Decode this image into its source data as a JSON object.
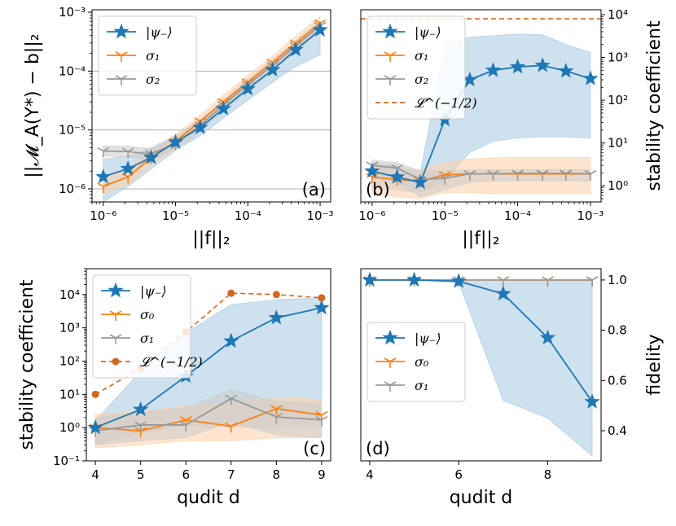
{
  "colors": {
    "psi": "#1f77b4",
    "sigma_a": "#ff7f0e",
    "sigma_b": "#999999",
    "bound": "#d2691e",
    "grid": "#b0b0b0",
    "band_psi": "#a6c8e0",
    "band_sigma_a": "#ffd0a8",
    "band_sigma_b": "#cccccc"
  },
  "chart_data": [
    {
      "id": "a",
      "type": "line",
      "panel_label": "(a)",
      "xscale": "log",
      "yscale": "log",
      "xlim": [
        7e-07,
        0.0014
      ],
      "ylim": [
        6e-07,
        0.0011
      ],
      "xlabel": "||f||₂",
      "ylabel": "||𝓜_A(Y*) − b||₂",
      "xticks": [
        {
          "v": 1e-06,
          "label": "10⁻⁶"
        },
        {
          "v": 1e-05,
          "label": "10⁻⁵"
        },
        {
          "v": 0.0001,
          "label": "10⁻⁴"
        },
        {
          "v": 0.001,
          "label": "10⁻³"
        }
      ],
      "yticks": [
        {
          "v": 1e-06,
          "label": "10⁻⁶"
        },
        {
          "v": 1e-05,
          "label": "10⁻⁵"
        },
        {
          "v": 0.0001,
          "label": "10⁻⁴"
        },
        {
          "v": 0.001,
          "label": "10⁻³"
        }
      ],
      "grid_y": [
        1e-06,
        1e-05,
        0.0001
      ],
      "legend_position": "top-left",
      "x": [
        1e-06,
        2.2e-06,
        4.6e-06,
        1e-05,
        2.2e-05,
        4.6e-05,
        0.0001,
        0.00022,
        0.00046,
        0.001
      ],
      "series": [
        {
          "name": "|ψ₋⟩",
          "key": "psi",
          "marker": "star",
          "values": [
            1.6e-06,
            2.2e-06,
            3.4e-06,
            6.2e-06,
            1.1e-05,
            2.3e-05,
            5e-05,
            0.000105,
            0.00023,
            0.0005
          ],
          "lower": [
            6e-07,
            1.1e-06,
            2.2e-06,
            4.5e-06,
            8e-06,
            1.6e-05,
            3.2e-05,
            6.5e-05,
            0.00012,
            0.00019
          ],
          "upper": [
            3.2e-06,
            3.6e-06,
            5e-06,
            8e-06,
            1.5e-05,
            3e-05,
            6.5e-05,
            0.00014,
            0.0003,
            0.00062
          ]
        },
        {
          "name": "σ₁",
          "key": "sigma_a",
          "marker": "tri",
          "values": [
            1.1e-06,
            1.6e-06,
            3.4e-06,
            6.4e-06,
            1.4e-05,
            3e-05,
            6.5e-05,
            0.00014,
            0.0003,
            0.00065
          ],
          "lower": [
            8e-07,
            1.2e-06,
            2.6e-06,
            5e-06,
            1.1e-05,
            2.3e-05,
            5e-05,
            0.00011,
            0.00023,
            0.0005
          ],
          "upper": [
            1.6e-06,
            2.2e-06,
            4.4e-06,
            8.4e-06,
            1.8e-05,
            3.9e-05,
            8.5e-05,
            0.00018,
            0.00039,
            0.00085
          ]
        },
        {
          "name": "σ₂",
          "key": "sigma_b",
          "marker": "tri",
          "values": [
            4.4e-06,
            4.3e-06,
            3.9e-06,
            5.9e-06,
            1.2e-05,
            2.7e-05,
            5.9e-05,
            0.000125,
            0.00027,
            0.00059
          ],
          "lower": [
            3.6e-06,
            3.5e-06,
            3.1e-06,
            4.7e-06,
            9.5e-06,
            2.1e-05,
            4.7e-05,
            0.0001,
            0.00021,
            0.00047
          ],
          "upper": [
            5.4e-06,
            5.3e-06,
            4.8e-06,
            7.3e-06,
            1.5e-05,
            3.3e-05,
            7.3e-05,
            0.000155,
            0.00033,
            0.00073
          ]
        }
      ]
    },
    {
      "id": "b",
      "type": "line",
      "panel_label": "(b)",
      "xscale": "log",
      "yscale": "log",
      "xlim": [
        7e-07,
        0.0014
      ],
      "ylim": [
        0.42,
        13000.0
      ],
      "xlabel": "||f||₂",
      "ylabel": "stability coefficient",
      "xticks": [
        {
          "v": 1e-06,
          "label": "10⁻⁶"
        },
        {
          "v": 1e-05,
          "label": "10⁻⁵"
        },
        {
          "v": 0.0001,
          "label": "10⁻⁴"
        },
        {
          "v": 0.001,
          "label": "10⁻³"
        }
      ],
      "yticks": [
        {
          "v": 1,
          "label": "10⁰"
        },
        {
          "v": 10,
          "label": "10¹"
        },
        {
          "v": 100,
          "label": "10²"
        },
        {
          "v": 1000,
          "label": "10³"
        },
        {
          "v": 10000,
          "label": "10⁴"
        }
      ],
      "legend_position": "top-left",
      "x": [
        1e-06,
        2.2e-06,
        4.6e-06,
        1e-05,
        2.2e-05,
        4.6e-05,
        0.0001,
        0.00022,
        0.00046,
        0.001
      ],
      "series": [
        {
          "name": "|ψ₋⟩",
          "key": "psi",
          "marker": "star",
          "values": [
            2.2,
            1.6,
            1.2,
            35,
            300,
            500,
            600,
            650,
            480,
            320
          ],
          "lower": [
            0.9,
            0.8,
            0.7,
            1.3,
            6,
            11,
            13,
            14,
            14,
            13
          ],
          "upper": [
            3.5,
            3.0,
            2.0,
            2000,
            3000,
            3200,
            3500,
            3400,
            2000,
            1300
          ]
        },
        {
          "name": "σ₁",
          "key": "sigma_a",
          "marker": "tri",
          "values": [
            1.6,
            1.4,
            1.3,
            1.8,
            1.9,
            1.9,
            1.9,
            1.9,
            1.9,
            1.9
          ],
          "lower": [
            0.65,
            0.55,
            0.5,
            0.7,
            0.7,
            0.65,
            0.65,
            0.65,
            0.65,
            0.65
          ],
          "upper": [
            3.0,
            2.6,
            2.4,
            3.5,
            4.2,
            4.5,
            4.6,
            4.6,
            4.6,
            4.6
          ]
        },
        {
          "name": "σ₂",
          "key": "sigma_b",
          "marker": "tri",
          "values": [
            3.0,
            2.6,
            1.4,
            1.5,
            1.9,
            1.9,
            1.95,
            1.95,
            1.95,
            1.9
          ],
          "lower": [
            1.5,
            1.2,
            0.55,
            0.8,
            1.2,
            1.3,
            1.3,
            1.3,
            1.3,
            1.3
          ],
          "upper": [
            4.0,
            3.5,
            2.2,
            2.2,
            2.4,
            2.4,
            2.4,
            2.4,
            2.4,
            2.4
          ]
        }
      ],
      "bound": {
        "name": "𝓛^(−1/2)",
        "value": 8000
      }
    },
    {
      "id": "c",
      "type": "line",
      "panel_label": "(c)",
      "xscale": "linear",
      "yscale": "log",
      "xlim": [
        3.8,
        9.2
      ],
      "ylim": [
        0.1,
        60000.0
      ],
      "xlabel": "qudit d",
      "ylabel": "stability coefficient",
      "xticks": [
        {
          "v": 4,
          "label": "4"
        },
        {
          "v": 5,
          "label": "5"
        },
        {
          "v": 6,
          "label": "6"
        },
        {
          "v": 7,
          "label": "7"
        },
        {
          "v": 8,
          "label": "8"
        },
        {
          "v": 9,
          "label": "9"
        }
      ],
      "yticks": [
        {
          "v": 0.1,
          "label": "10⁻¹"
        },
        {
          "v": 1,
          "label": "10⁰"
        },
        {
          "v": 10,
          "label": "10¹"
        },
        {
          "v": 100,
          "label": "10²"
        },
        {
          "v": 1000,
          "label": "10³"
        },
        {
          "v": 10000,
          "label": "10⁴"
        }
      ],
      "legend_position": "top-left",
      "x": [
        4,
        5,
        6,
        7,
        8,
        9
      ],
      "series": [
        {
          "name": "|ψ₋⟩",
          "key": "psi",
          "marker": "star",
          "values": [
            1.0,
            3.5,
            35,
            400,
            2000,
            4000
          ],
          "lower": [
            0.3,
            0.7,
            1.2,
            1.0,
            1.0,
            1.0
          ],
          "upper": [
            1.6,
            50,
            700,
            5000,
            7000,
            8000
          ]
        },
        {
          "name": "σ₀",
          "key": "sigma_a",
          "marker": "tri",
          "values": [
            1.0,
            0.8,
            1.7,
            1.1,
            3.7,
            2.4
          ],
          "lower": [
            0.25,
            0.3,
            0.4,
            0.4,
            0.5,
            0.5
          ],
          "upper": [
            2.5,
            3.0,
            4.5,
            5.5,
            8.0,
            7.0
          ]
        },
        {
          "name": "σ₁",
          "key": "sigma_b",
          "marker": "tri",
          "values": [
            0.8,
            1.2,
            1.2,
            7.5,
            2.1,
            1.7
          ],
          "lower": [
            0.3,
            0.4,
            0.5,
            1.5,
            0.6,
            0.5
          ],
          "upper": [
            2.0,
            2.8,
            4.0,
            14,
            6.0,
            5.0
          ]
        }
      ],
      "bound_series": {
        "name": "𝓛^(−1/2)",
        "key": "bound",
        "marker": "circle",
        "values": [
          10,
          60,
          750,
          11000,
          10000,
          8000
        ]
      }
    },
    {
      "id": "d",
      "type": "line",
      "panel_label": "(d)",
      "xscale": "linear",
      "yscale": "linear",
      "xlim": [
        3.8,
        9.2
      ],
      "ylim": [
        0.28,
        1.045
      ],
      "xlabel": "qudit d",
      "ylabel": "fidelity",
      "xticks": [
        {
          "v": 4,
          "label": "4"
        },
        {
          "v": 6,
          "label": "6"
        },
        {
          "v": 8,
          "label": "8"
        }
      ],
      "yticks": [
        {
          "v": 0.4,
          "label": "0.4"
        },
        {
          "v": 0.6,
          "label": "0.6"
        },
        {
          "v": 0.8,
          "label": "0.8"
        },
        {
          "v": 1.0,
          "label": "1.0"
        }
      ],
      "legend_position": "center-left",
      "x": [
        4,
        5,
        6,
        7,
        8,
        9
      ],
      "series": [
        {
          "name": "|ψ₋⟩",
          "key": "psi",
          "marker": "star",
          "values": [
            1.0,
            1.0,
            0.995,
            0.945,
            0.77,
            0.515
          ],
          "lower": [
            1.0,
            1.0,
            0.99,
            0.52,
            0.45,
            0.3
          ],
          "upper": [
            1.0,
            1.0,
            1.0,
            1.0,
            1.0,
            1.0
          ]
        },
        {
          "name": "σ₀",
          "key": "sigma_a",
          "marker": "tri",
          "values": [
            1.0,
            1.0,
            1.0,
            1.0,
            1.0,
            1.0
          ]
        },
        {
          "name": "σ₁",
          "key": "sigma_b",
          "marker": "tri",
          "values": [
            1.0,
            1.0,
            1.0,
            1.0,
            1.0,
            1.0
          ]
        }
      ]
    }
  ]
}
